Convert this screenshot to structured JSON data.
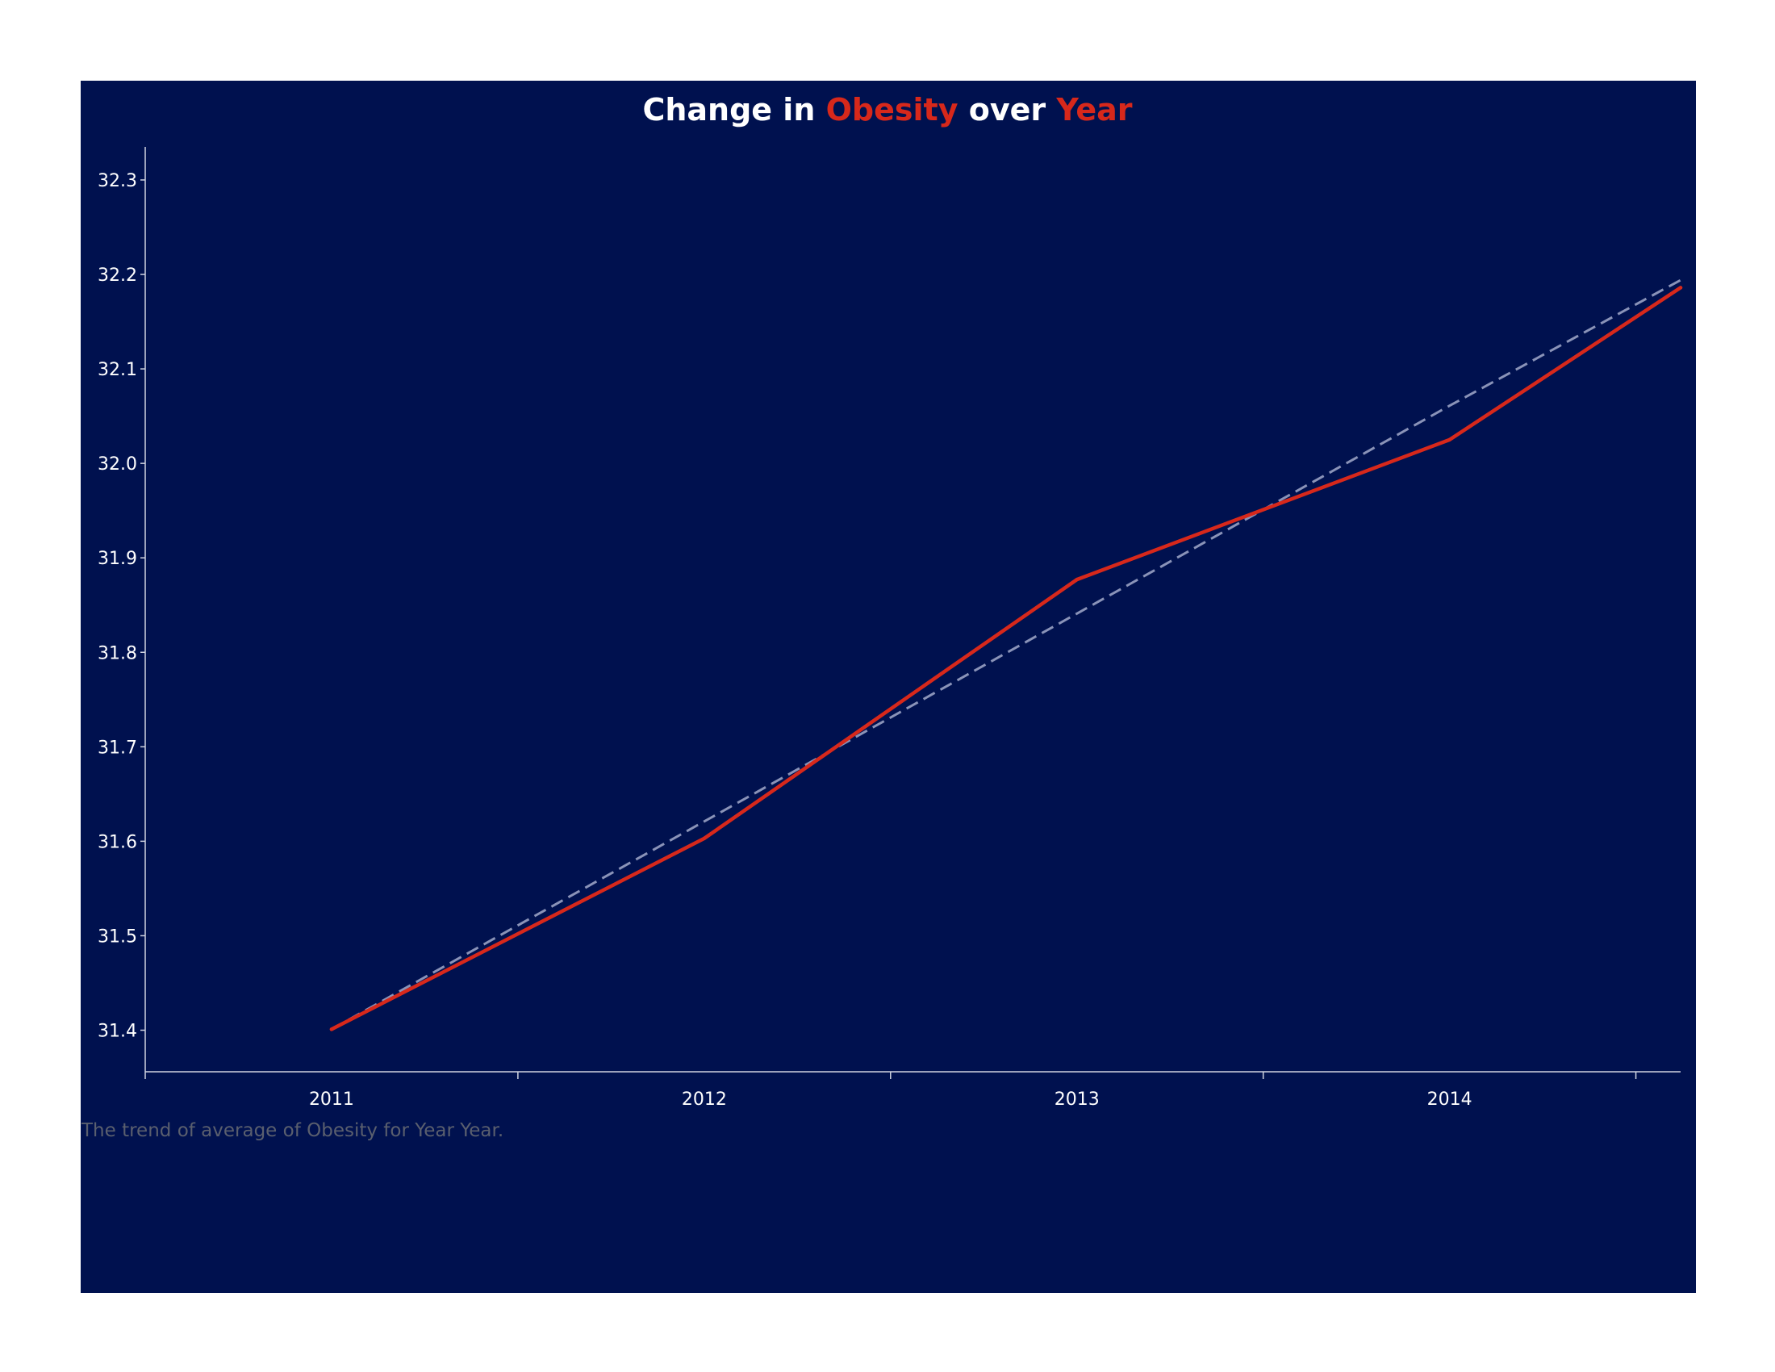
{
  "colors": {
    "background": "#00114f",
    "accent": "#d7281b",
    "trend_line": "#8a93b8",
    "axis": "#cfd3e0",
    "caption": "#5a5f6e"
  },
  "title": {
    "part1": "Change in ",
    "part2": "Obesity",
    "part3": " over ",
    "part4": "Year"
  },
  "caption": "The trend of average of Obesity for Year Year.",
  "chart_data": {
    "type": "line",
    "title": "Change in Obesity over Year",
    "xlabel": "",
    "ylabel": "",
    "x": [
      2011,
      2012,
      2013,
      2014,
      2014.62
    ],
    "x_tick_labels": [
      "2011",
      "2012",
      "2013",
      "2014"
    ],
    "y_ticks": [
      "31.4",
      "31.5",
      "31.6",
      "31.7",
      "31.8",
      "31.9",
      "32.0",
      "32.1",
      "32.2",
      "32.3"
    ],
    "xlim": [
      2010.5,
      2014.62
    ],
    "ylim": [
      31.356,
      32.335
    ],
    "grid": false,
    "series": [
      {
        "values": [
          31.401,
          31.603,
          31.877,
          32.025,
          32.186
        ]
      }
    ],
    "trend_line": {
      "style": "dashed",
      "values": [
        31.401,
        31.621,
        31.841,
        32.061,
        32.194
      ]
    }
  }
}
